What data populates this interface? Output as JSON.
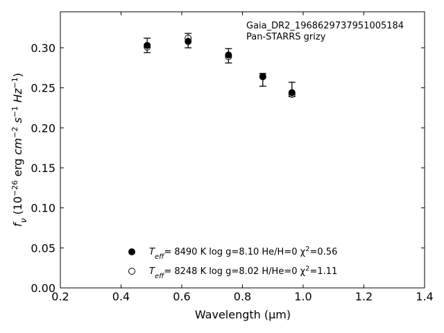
{
  "chart_data": {
    "type": "scatter",
    "xlabel": "Wavelength (μm)",
    "ylabel_parts": {
      "f": "f",
      "nu": "ν",
      "open": " (10",
      "exp1": "−26",
      "mid": " erg ",
      "cm": "cm",
      "exp2": "−2",
      "s": " s",
      "exp3": "−1",
      "hz": " Hz",
      "exp4": "−1",
      "close": ")"
    },
    "xlim": [
      0.2,
      1.4
    ],
    "ylim": [
      0.0,
      0.345
    ],
    "xticks": [
      "0.2",
      "0.4",
      "0.6",
      "0.8",
      "1.0",
      "1.2",
      "1.4"
    ],
    "yticks": [
      "0.00",
      "0.05",
      "0.10",
      "0.15",
      "0.20",
      "0.25",
      "0.30"
    ],
    "annotation_lines": [
      "Gaia_DR2_1968629737951005184",
      "Pan-STARRS grizy"
    ],
    "observed": {
      "x": [
        0.486,
        0.621,
        0.754,
        0.867,
        0.963
      ],
      "y": [
        0.303,
        0.309,
        0.29,
        0.26,
        0.248
      ],
      "err": [
        0.009,
        0.009,
        0.009,
        0.008,
        0.009
      ]
    },
    "series": [
      {
        "marker": "filled",
        "x": [
          0.486,
          0.621,
          0.754,
          0.867,
          0.963
        ],
        "y": [
          0.303,
          0.308,
          0.291,
          0.264,
          0.244
        ],
        "legend": {
          "teff_label": "T",
          "teff_sub": "eff",
          "text1": "=  8490 K  log g=8.10  He/H=0  χ",
          "chi_sup": "2",
          "text2": "=0.56"
        }
      },
      {
        "marker": "open",
        "x": [
          0.486,
          0.621,
          0.754,
          0.867,
          0.963
        ],
        "y": [
          0.301,
          0.312,
          0.289,
          0.264,
          0.242
        ],
        "legend": {
          "teff_label": "T",
          "teff_sub": "eff",
          "text1": "=  8248 K  log g=8.02  H/He=0  χ",
          "chi_sup": "2",
          "text2": "=1.11"
        }
      }
    ],
    "legend_position": "lower-center",
    "grid": false
  }
}
